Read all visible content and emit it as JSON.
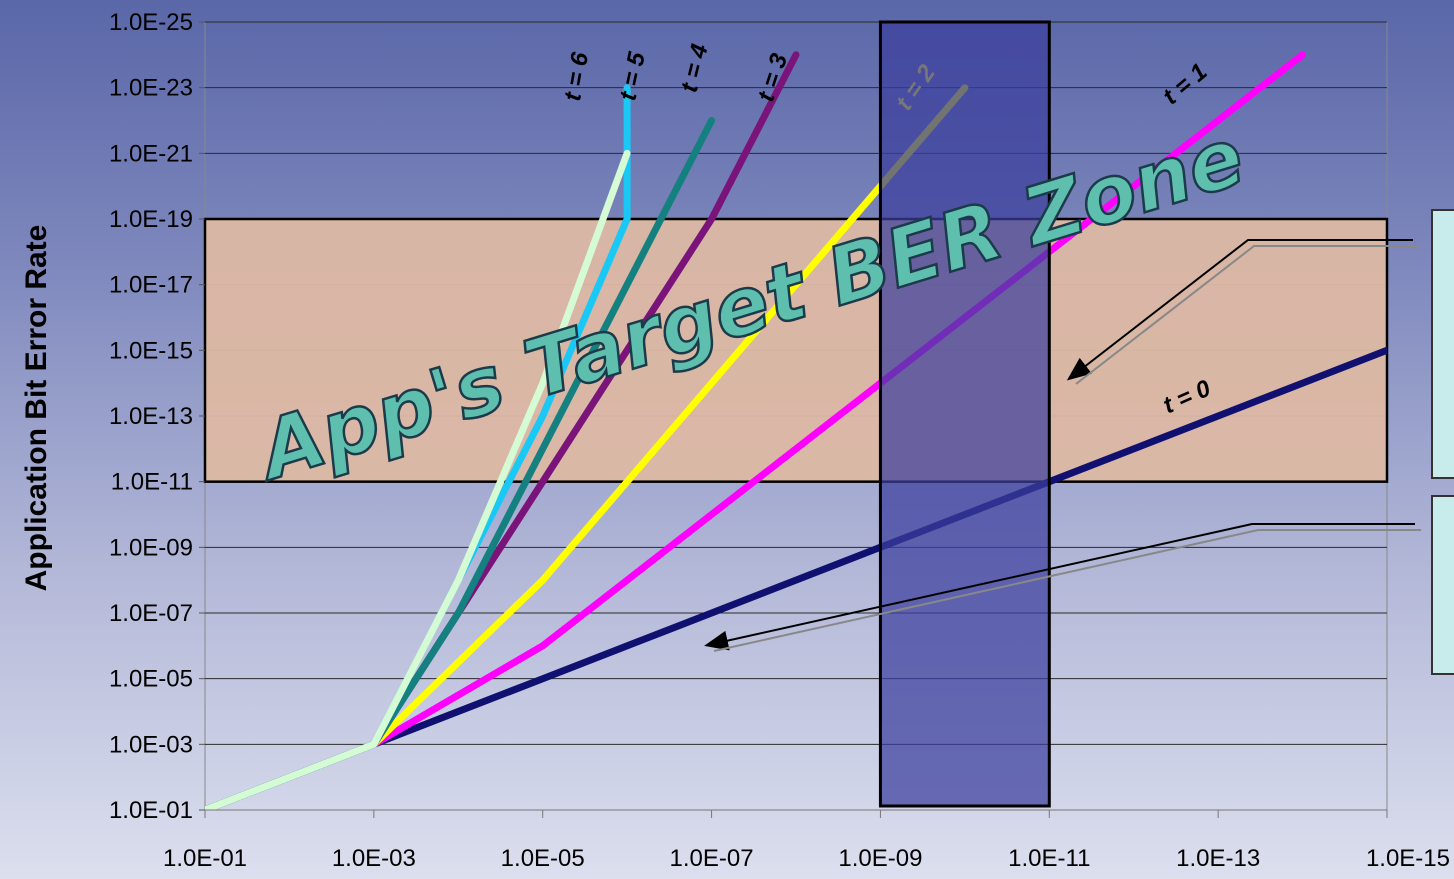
{
  "chart_data": {
    "type": "line",
    "title": "",
    "xlabel": "",
    "ylabel": "Application Bit Error Rate",
    "x_scale": "log",
    "y_scale": "log",
    "xlim": [
      0.1,
      1e-15
    ],
    "ylim": [
      0.1,
      1e-25
    ],
    "x_tick_labels": [
      "1.0E-01",
      "1.0E-03",
      "1.0E-05",
      "1.0E-07",
      "1.0E-09",
      "1.0E-11",
      "1.0E-13",
      "1.0E-15"
    ],
    "y_tick_labels": [
      "1.0E-25",
      "1.0E-23",
      "1.0E-21",
      "1.0E-19",
      "1.0E-17",
      "1.0E-15",
      "1.0E-13",
      "1.0E-11",
      "1.0E-09",
      "1.0E-07",
      "1.0E-05",
      "1.0E-03",
      "1.0E-01"
    ],
    "grid": "horizontal",
    "target_zone": {
      "label": "App's Target BER Zone",
      "y_range": [
        1e-11,
        1e-19
      ],
      "color": "#ddb8a3"
    },
    "highlight_band": {
      "x_range": [
        1e-09,
        1e-11
      ],
      "color": "#3c3e9c"
    },
    "series": [
      {
        "name": "t = 0",
        "color": "#101070",
        "x": [
          0.1,
          0.001,
          1e-05,
          1e-07,
          1e-09,
          1e-11,
          1e-13,
          1e-15
        ],
        "y": [
          0.1,
          0.001,
          1e-05,
          1e-07,
          1e-09,
          1e-11,
          1e-13,
          1e-15
        ]
      },
      {
        "name": "t = 1",
        "color": "#ff00ff",
        "x": [
          0.1,
          0.001,
          1e-05,
          1e-07,
          1e-09,
          1e-11,
          1e-13,
          1e-14
        ],
        "y": [
          0.1,
          0.001,
          1e-06,
          1e-10,
          1e-14,
          1e-18,
          1e-22,
          1e-24
        ]
      },
      {
        "name": "t = 2",
        "color": "#ffff00",
        "x": [
          0.1,
          0.001,
          1e-05,
          1e-07,
          1e-09,
          1e-10
        ],
        "y": [
          0.1,
          0.001,
          1e-08,
          1e-14,
          1e-20,
          1e-23
        ]
      },
      {
        "name": "t = 3",
        "color": "#7a137a",
        "x": [
          0.1,
          0.001,
          0.0001,
          1e-05,
          1e-06,
          1e-07,
          1e-08
        ],
        "y": [
          0.1,
          0.001,
          1e-07,
          1e-11,
          1e-15,
          1e-19,
          1e-24
        ]
      },
      {
        "name": "t = 4",
        "color": "#158080",
        "x": [
          0.1,
          0.001,
          0.0001,
          1e-05,
          1e-06,
          1e-07
        ],
        "y": [
          0.1,
          0.001,
          1e-07,
          1e-12,
          1e-17,
          1e-22
        ]
      },
      {
        "name": "t = 5",
        "color": "#19c8f5",
        "x": [
          0.1,
          0.001,
          0.0001,
          1e-05,
          1e-06,
          1e-06
        ],
        "y": [
          0.1,
          0.001,
          1e-08,
          1e-13,
          1e-19,
          1e-23
        ]
      },
      {
        "name": "t = 6",
        "color": "#d4fbd4",
        "x": [
          0.1,
          0.001,
          0.0001,
          1e-05,
          1e-06
        ],
        "y": [
          0.1,
          0.001,
          1e-08,
          1e-14,
          1e-21
        ]
      }
    ]
  }
}
